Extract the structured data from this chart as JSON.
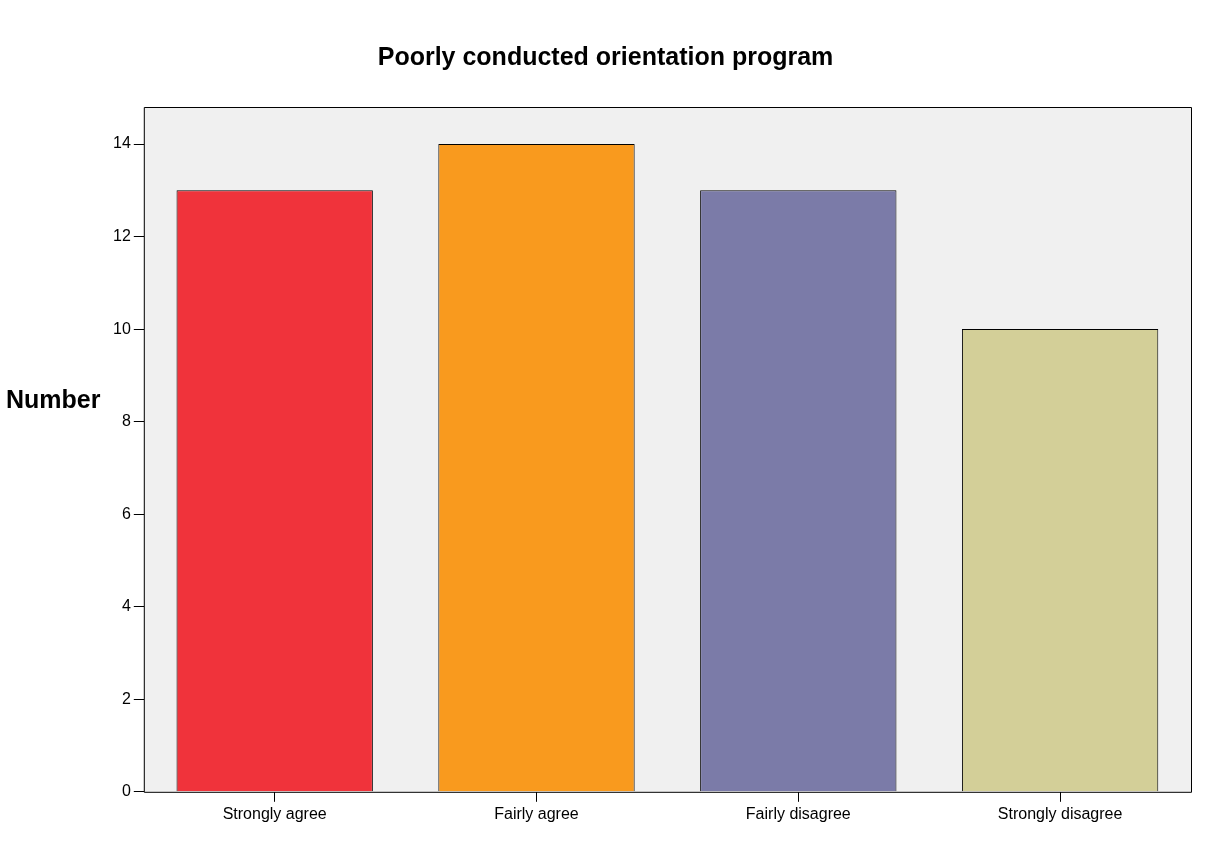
{
  "chart_data": {
    "type": "bar",
    "title": "Poorly conducted orientation program",
    "ylabel": "Number",
    "categories": [
      "Strongly agree",
      "Fairly agree",
      "Fairly disagree",
      "Strongly disagree"
    ],
    "values": [
      13,
      14,
      13,
      10
    ],
    "colors": [
      "#f0333b",
      "#f99a1e",
      "#7b7ba8",
      "#d3cf98"
    ],
    "ylim": [
      0,
      14.8
    ],
    "yticks": [
      0,
      2,
      4,
      6,
      8,
      10,
      12,
      14
    ]
  }
}
